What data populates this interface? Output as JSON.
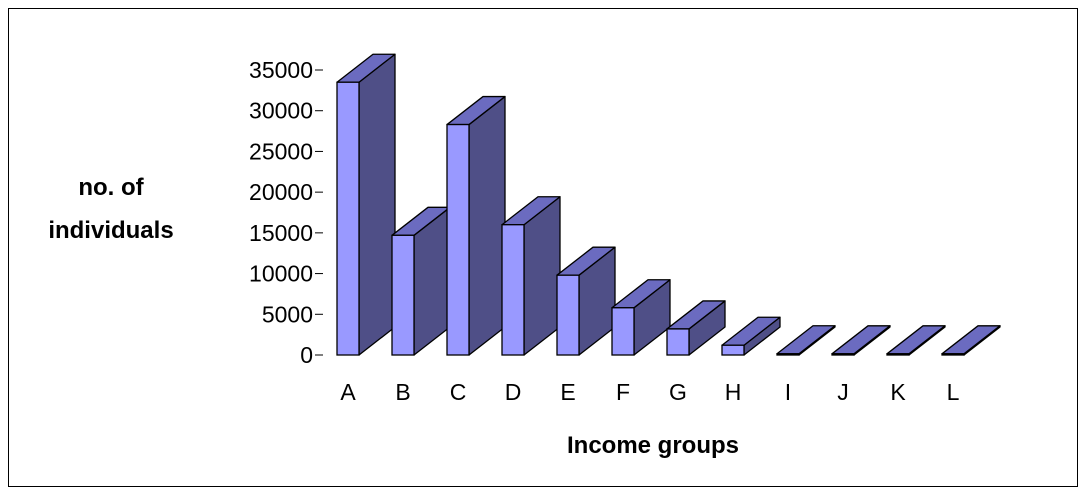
{
  "chart_data": {
    "type": "bar",
    "style": "3d-column",
    "categories": [
      "A",
      "B",
      "C",
      "D",
      "E",
      "F",
      "G",
      "H",
      "I",
      "J",
      "K",
      "L"
    ],
    "values": [
      33500,
      14700,
      28300,
      16000,
      9800,
      5800,
      3200,
      1200,
      150,
      50,
      50,
      30
    ],
    "title": "",
    "xlabel": "Income groups",
    "ylabel_lines": [
      "no. of",
      "individuals"
    ],
    "ylim": [
      0,
      35000
    ],
    "yticks": [
      0,
      5000,
      10000,
      15000,
      20000,
      25000,
      30000,
      35000
    ],
    "grid": false,
    "legend": false,
    "colors": {
      "front": "#9999ff",
      "side": "#4f4f87",
      "top": "#6b6bc0",
      "outline": "#000000"
    }
  }
}
